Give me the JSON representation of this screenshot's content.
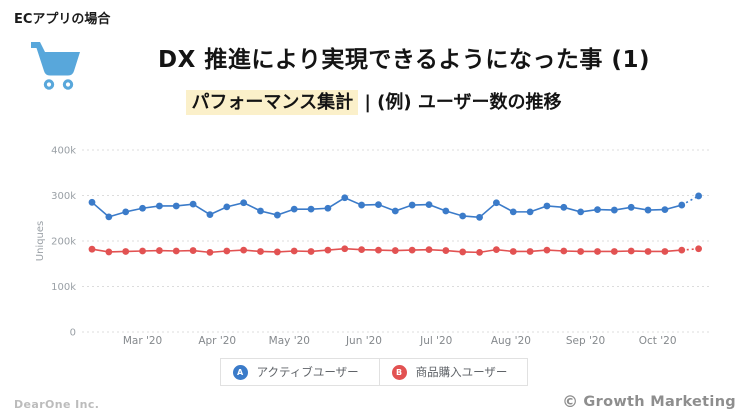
{
  "slide": {
    "corner_label": "ECアプリの場合",
    "title": "DX 推進により実現できるようになった事 (1)",
    "subtitle_highlight": "パフォーマンス集計",
    "subtitle_rest": " | (例) ユーザー数の推移",
    "footer_left": "DearOne Inc.",
    "footer_right": "Growth Marketing",
    "copyright_symbol": "©"
  },
  "colors": {
    "active_users_blue": "#3B7BC9",
    "purchase_users_red": "#E25252",
    "highlight_yellow": "#FBF0CA",
    "cart_blue": "#58A7DB",
    "gridline_gray": "#dcdcdc",
    "axis_text_gray": "#9aa0a6"
  },
  "chart_data": {
    "type": "line",
    "title": "",
    "xlabel": "",
    "ylabel": "Uniques",
    "unit": "k",
    "ylim": [
      0,
      430
    ],
    "grid": "horizontal-dotted",
    "legend_position": "bottom",
    "last_segment_dashed": true,
    "y_ticks": [
      {
        "value": 0,
        "label": "0"
      },
      {
        "value": 100,
        "label": "100k"
      },
      {
        "value": 200,
        "label": "200k"
      },
      {
        "value": 300,
        "label": "300k"
      },
      {
        "value": 400,
        "label": "400k"
      }
    ],
    "x_ticks": [
      "Mar '20",
      "Apr '20",
      "May '20",
      "Jun '20",
      "Jul '20",
      "Aug '20",
      "Sep '20",
      "Oct '20"
    ],
    "x_tick_positions": [
      3,
      7.43,
      11.71,
      16.14,
      20.43,
      24.86,
      29.29,
      33.57
    ],
    "series": [
      {
        "name": "アクティブユーザー",
        "letter": "A",
        "color": "#3B7BC9",
        "values": [
          285,
          253,
          264,
          272,
          277,
          277,
          281,
          258,
          275,
          284,
          266,
          257,
          270,
          270,
          272,
          295,
          279,
          280,
          266,
          279,
          280,
          266,
          255,
          252,
          284,
          264,
          264,
          277,
          274,
          264,
          269,
          268,
          274,
          268,
          269,
          279,
          299
        ]
      },
      {
        "name": "商品購入ユーザー",
        "letter": "B",
        "color": "#E25252",
        "values": [
          182,
          176,
          177,
          178,
          179,
          178,
          179,
          175,
          178,
          180,
          177,
          176,
          178,
          177,
          180,
          183,
          181,
          180,
          179,
          180,
          181,
          179,
          176,
          175,
          181,
          177,
          177,
          180,
          178,
          177,
          177,
          177,
          178,
          177,
          177,
          180,
          183
        ]
      }
    ]
  }
}
